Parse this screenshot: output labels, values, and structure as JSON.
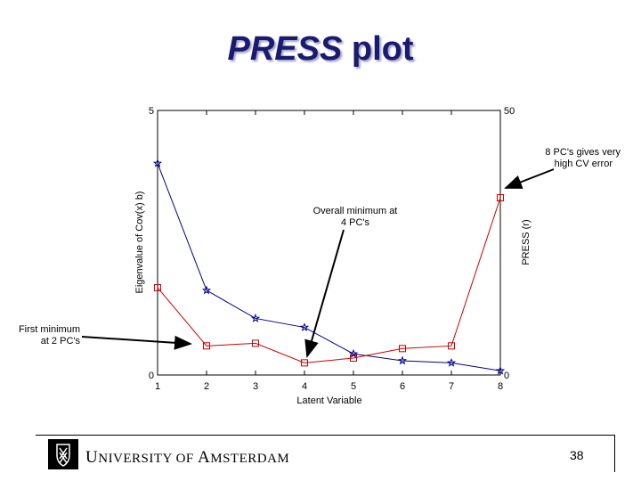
{
  "slide": {
    "title_italic": "PRESS",
    "title_rest": " plot",
    "page_number": "38",
    "university_U": "U",
    "university_rest1": "NIVERSITY OF ",
    "university_A": "A",
    "university_rest2": "MSTERDAM"
  },
  "annotations": {
    "first_min_line1": "First minimum",
    "first_min_line2": "at 2 PC's",
    "overall_min_line1": "Overall minimum at",
    "overall_min_line2": "4 PC's",
    "eight_pc_line1": "8 PC's gives very",
    "eight_pc_line2": "high CV error"
  },
  "chart_data": {
    "type": "line",
    "xlabel": "Latent Variable",
    "ylabel_left": "Eigenvalue of Cov(x) b)",
    "ylabel_right": "PRESS (r)",
    "x": [
      1,
      2,
      3,
      4,
      5,
      6,
      7,
      8
    ],
    "xlim": [
      1,
      8
    ],
    "ylim_left": [
      0,
      5
    ],
    "ylim_right": [
      0,
      50
    ],
    "left_tick_labels": [
      "0",
      "5"
    ],
    "right_tick_labels": [
      "0",
      "50"
    ],
    "series": [
      {
        "axis": "left",
        "marker": "star",
        "color": "#00008b",
        "values": [
          4.0,
          1.6,
          1.07,
          0.9,
          0.4,
          0.27,
          0.23,
          0.08
        ]
      },
      {
        "axis": "right",
        "marker": "square",
        "color": "#cc0000",
        "values": [
          16.5,
          5.5,
          6.0,
          2.3,
          3.2,
          5.0,
          5.5,
          33.5
        ]
      }
    ]
  }
}
